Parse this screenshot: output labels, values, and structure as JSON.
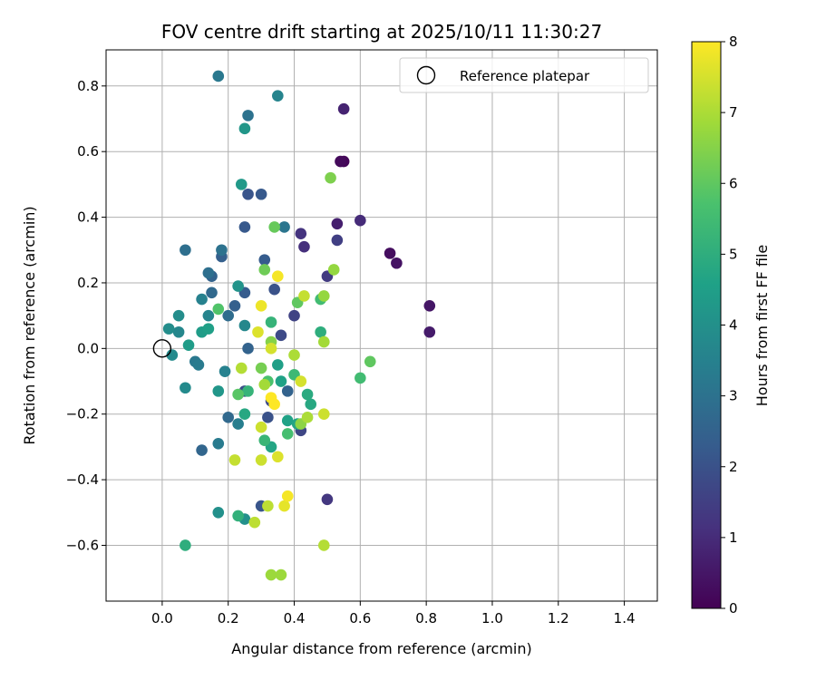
{
  "chart_data": {
    "type": "scatter",
    "title": "FOV centre drift starting at 2025/10/11 11:30:27",
    "xlabel": "Angular distance from reference (arcmin)",
    "ylabel": "Rotation from reference (arcmin)",
    "xlim": [
      -0.17,
      1.5
    ],
    "ylim": [
      -0.77,
      0.91
    ],
    "xticks": [
      0.0,
      0.2,
      0.4,
      0.6,
      0.8,
      1.0,
      1.2,
      1.4
    ],
    "xtick_labels": [
      "0.0",
      "0.2",
      "0.4",
      "0.6",
      "0.8",
      "1.0",
      "1.2",
      "1.4"
    ],
    "yticks": [
      -0.6,
      -0.4,
      -0.2,
      0.0,
      0.2,
      0.4,
      0.6,
      0.8
    ],
    "ytick_labels": [
      "−0.6",
      "−0.4",
      "−0.2",
      "0.0",
      "0.2",
      "0.4",
      "0.6",
      "0.8"
    ],
    "grid": true,
    "legend": {
      "location": "upper-right",
      "entries": [
        {
          "label": "Reference platepar",
          "marker": "open-circle"
        }
      ]
    },
    "reference_point": {
      "x": 0.0,
      "y": 0.0
    },
    "colorbar": {
      "label": "Hours from first FF file",
      "colormap": "viridis",
      "range": [
        0,
        8
      ],
      "ticks": [
        0,
        1,
        2,
        3,
        4,
        5,
        6,
        7,
        8
      ],
      "tick_labels": [
        "0",
        "1",
        "2",
        "3",
        "4",
        "5",
        "6",
        "7",
        "8"
      ],
      "colormap_stops": [
        "#440154",
        "#46327e",
        "#365c8d",
        "#277f8e",
        "#1fa187",
        "#4ac16d",
        "#a0da39",
        "#fde725"
      ]
    },
    "points": [
      {
        "x": 0.55,
        "y": 0.57,
        "hours": 0.1
      },
      {
        "x": 0.54,
        "y": 0.57,
        "hours": 0.2
      },
      {
        "x": 0.69,
        "y": 0.29,
        "hours": 0.3
      },
      {
        "x": 0.71,
        "y": 0.26,
        "hours": 0.4
      },
      {
        "x": 0.81,
        "y": 0.13,
        "hours": 0.5
      },
      {
        "x": 0.81,
        "y": 0.05,
        "hours": 0.6
      },
      {
        "x": 0.53,
        "y": 0.38,
        "hours": 0.7
      },
      {
        "x": 0.55,
        "y": 0.73,
        "hours": 0.8
      },
      {
        "x": 0.6,
        "y": 0.39,
        "hours": 1.0
      },
      {
        "x": 0.43,
        "y": 0.31,
        "hours": 1.1
      },
      {
        "x": 0.42,
        "y": 0.35,
        "hours": 1.2
      },
      {
        "x": 0.5,
        "y": -0.46,
        "hours": 1.3
      },
      {
        "x": 0.5,
        "y": 0.22,
        "hours": 1.4
      },
      {
        "x": 0.53,
        "y": 0.33,
        "hours": 1.5
      },
      {
        "x": 0.4,
        "y": 0.1,
        "hours": 1.6
      },
      {
        "x": 0.42,
        "y": -0.25,
        "hours": 1.7
      },
      {
        "x": 0.33,
        "y": -0.16,
        "hours": 1.8
      },
      {
        "x": 0.36,
        "y": 0.04,
        "hours": 1.8
      },
      {
        "x": 0.25,
        "y": -0.13,
        "hours": 1.9
      },
      {
        "x": 0.34,
        "y": 0.18,
        "hours": 2.0
      },
      {
        "x": 0.32,
        "y": -0.21,
        "hours": 2.0
      },
      {
        "x": 0.3,
        "y": -0.48,
        "hours": 2.1
      },
      {
        "x": 0.26,
        "y": 0.47,
        "hours": 2.1
      },
      {
        "x": 0.3,
        "y": 0.47,
        "hours": 2.2
      },
      {
        "x": 0.25,
        "y": 0.37,
        "hours": 2.2
      },
      {
        "x": 0.31,
        "y": 0.27,
        "hours": 2.3
      },
      {
        "x": 0.25,
        "y": 0.17,
        "hours": 2.3
      },
      {
        "x": 0.22,
        "y": 0.13,
        "hours": 2.4
      },
      {
        "x": 0.18,
        "y": 0.28,
        "hours": 2.4
      },
      {
        "x": 0.15,
        "y": 0.22,
        "hours": 2.5
      },
      {
        "x": 0.26,
        "y": 0.0,
        "hours": 2.5
      },
      {
        "x": 0.38,
        "y": -0.13,
        "hours": 2.5
      },
      {
        "x": 0.12,
        "y": -0.31,
        "hours": 2.6
      },
      {
        "x": 0.2,
        "y": -0.21,
        "hours": 2.7
      },
      {
        "x": 0.15,
        "y": 0.17,
        "hours": 2.7
      },
      {
        "x": 0.2,
        "y": 0.1,
        "hours": 2.8
      },
      {
        "x": 0.07,
        "y": 0.3,
        "hours": 2.9
      },
      {
        "x": 0.14,
        "y": 0.23,
        "hours": 2.9
      },
      {
        "x": 0.18,
        "y": 0.3,
        "hours": 3.0
      },
      {
        "x": 0.26,
        "y": 0.71,
        "hours": 3.0
      },
      {
        "x": 0.37,
        "y": 0.37,
        "hours": 3.1
      },
      {
        "x": 0.17,
        "y": 0.83,
        "hours": 3.2
      },
      {
        "x": 0.1,
        "y": -0.04,
        "hours": 3.2
      },
      {
        "x": 0.11,
        "y": -0.05,
        "hours": 3.3
      },
      {
        "x": 0.17,
        "y": -0.29,
        "hours": 3.3
      },
      {
        "x": 0.23,
        "y": -0.23,
        "hours": 3.4
      },
      {
        "x": 0.19,
        "y": -0.07,
        "hours": 3.5
      },
      {
        "x": 0.12,
        "y": 0.15,
        "hours": 3.5
      },
      {
        "x": 0.14,
        "y": 0.1,
        "hours": 3.6
      },
      {
        "x": 0.35,
        "y": 0.77,
        "hours": 3.6
      },
      {
        "x": 0.25,
        "y": 0.07,
        "hours": 3.7
      },
      {
        "x": 0.05,
        "y": 0.05,
        "hours": 3.7
      },
      {
        "x": 0.03,
        "y": -0.02,
        "hours": 3.8
      },
      {
        "x": 0.07,
        "y": -0.12,
        "hours": 3.8
      },
      {
        "x": 0.02,
        "y": 0.06,
        "hours": 3.9
      },
      {
        "x": 0.05,
        "y": 0.1,
        "hours": 3.9
      },
      {
        "x": 0.17,
        "y": -0.5,
        "hours": 4.0
      },
      {
        "x": 0.25,
        "y": -0.52,
        "hours": 4.0
      },
      {
        "x": 0.23,
        "y": 0.19,
        "hours": 4.1
      },
      {
        "x": 0.17,
        "y": -0.13,
        "hours": 4.2
      },
      {
        "x": 0.25,
        "y": 0.67,
        "hours": 4.2
      },
      {
        "x": 0.24,
        "y": 0.5,
        "hours": 4.3
      },
      {
        "x": 0.08,
        "y": 0.01,
        "hours": 4.4
      },
      {
        "x": 0.12,
        "y": 0.05,
        "hours": 4.4
      },
      {
        "x": 0.14,
        "y": 0.06,
        "hours": 4.5
      },
      {
        "x": 0.35,
        "y": -0.05,
        "hours": 4.5
      },
      {
        "x": 0.36,
        "y": -0.1,
        "hours": 4.6
      },
      {
        "x": 0.38,
        "y": -0.22,
        "hours": 4.6
      },
      {
        "x": 0.41,
        "y": -0.23,
        "hours": 4.7
      },
      {
        "x": 0.33,
        "y": -0.3,
        "hours": 4.7
      },
      {
        "x": 0.25,
        "y": -0.2,
        "hours": 4.8
      },
      {
        "x": 0.45,
        "y": -0.17,
        "hours": 4.8
      },
      {
        "x": 0.44,
        "y": -0.14,
        "hours": 4.9
      },
      {
        "x": 0.07,
        "y": -0.6,
        "hours": 5.0
      },
      {
        "x": 0.48,
        "y": 0.05,
        "hours": 5.0
      },
      {
        "x": 0.23,
        "y": -0.51,
        "hours": 5.1
      },
      {
        "x": 0.26,
        "y": -0.13,
        "hours": 5.2
      },
      {
        "x": 0.33,
        "y": 0.08,
        "hours": 5.2
      },
      {
        "x": 0.31,
        "y": -0.28,
        "hours": 5.3
      },
      {
        "x": 0.4,
        "y": -0.08,
        "hours": 5.4
      },
      {
        "x": 0.48,
        "y": 0.15,
        "hours": 5.5
      },
      {
        "x": 0.6,
        "y": -0.09,
        "hours": 5.5
      },
      {
        "x": 0.38,
        "y": -0.26,
        "hours": 5.6
      },
      {
        "x": 0.32,
        "y": -0.1,
        "hours": 5.7
      },
      {
        "x": 0.17,
        "y": 0.12,
        "hours": 5.8
      },
      {
        "x": 0.23,
        "y": -0.14,
        "hours": 5.9
      },
      {
        "x": 0.63,
        "y": -0.04,
        "hours": 6.0
      },
      {
        "x": 0.41,
        "y": 0.14,
        "hours": 6.0
      },
      {
        "x": 0.34,
        "y": 0.37,
        "hours": 6.1
      },
      {
        "x": 0.31,
        "y": 0.24,
        "hours": 6.2
      },
      {
        "x": 0.3,
        "y": -0.06,
        "hours": 6.3
      },
      {
        "x": 0.51,
        "y": 0.52,
        "hours": 6.4
      },
      {
        "x": 0.33,
        "y": 0.02,
        "hours": 6.5
      },
      {
        "x": 0.42,
        "y": -0.23,
        "hours": 6.6
      },
      {
        "x": 0.52,
        "y": 0.24,
        "hours": 6.7
      },
      {
        "x": 0.49,
        "y": 0.16,
        "hours": 6.7
      },
      {
        "x": 0.33,
        "y": -0.69,
        "hours": 6.8
      },
      {
        "x": 0.36,
        "y": -0.69,
        "hours": 6.8
      },
      {
        "x": 0.49,
        "y": 0.02,
        "hours": 6.9
      },
      {
        "x": 0.31,
        "y": -0.11,
        "hours": 6.9
      },
      {
        "x": 0.44,
        "y": -0.21,
        "hours": 7.0
      },
      {
        "x": 0.4,
        "y": -0.02,
        "hours": 7.0
      },
      {
        "x": 0.24,
        "y": -0.06,
        "hours": 7.1
      },
      {
        "x": 0.49,
        "y": -0.6,
        "hours": 7.1
      },
      {
        "x": 0.28,
        "y": -0.53,
        "hours": 7.2
      },
      {
        "x": 0.32,
        "y": -0.48,
        "hours": 7.2
      },
      {
        "x": 0.22,
        "y": -0.34,
        "hours": 7.3
      },
      {
        "x": 0.43,
        "y": 0.16,
        "hours": 7.3
      },
      {
        "x": 0.49,
        "y": -0.2,
        "hours": 7.4
      },
      {
        "x": 0.3,
        "y": -0.34,
        "hours": 7.4
      },
      {
        "x": 0.3,
        "y": -0.24,
        "hours": 7.4
      },
      {
        "x": 0.33,
        "y": 0.0,
        "hours": 7.5
      },
      {
        "x": 0.42,
        "y": -0.1,
        "hours": 7.5
      },
      {
        "x": 0.29,
        "y": 0.05,
        "hours": 7.6
      },
      {
        "x": 0.35,
        "y": -0.33,
        "hours": 7.6
      },
      {
        "x": 0.37,
        "y": -0.48,
        "hours": 7.7
      },
      {
        "x": 0.3,
        "y": 0.13,
        "hours": 7.8
      },
      {
        "x": 0.35,
        "y": 0.22,
        "hours": 7.9
      },
      {
        "x": 0.38,
        "y": -0.45,
        "hours": 7.9
      },
      {
        "x": 0.34,
        "y": -0.17,
        "hours": 8.0
      },
      {
        "x": 0.33,
        "y": -0.15,
        "hours": 8.0
      }
    ]
  }
}
